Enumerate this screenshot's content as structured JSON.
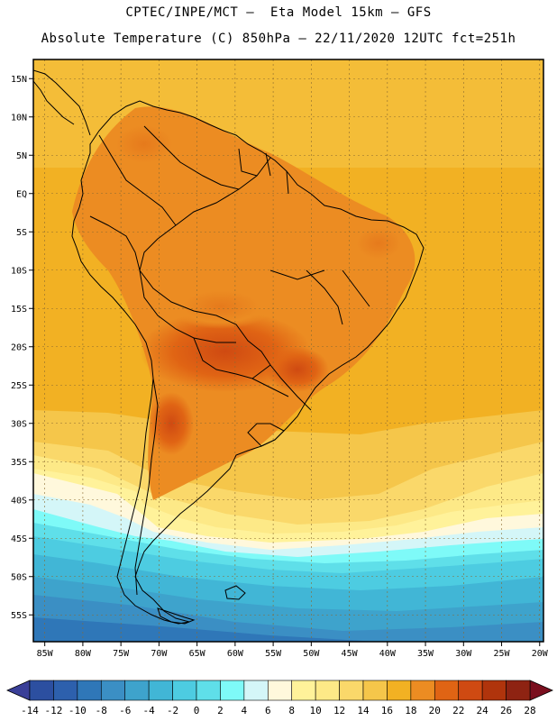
{
  "header": {
    "line1": "CPTEC/INPE/MCT –  Eta Model 15km – GFS",
    "line2": "Absolute Temperature (C) 850hPa – 22/11/2020 12UTC fct=251h"
  },
  "map": {
    "lon_range": [
      -86.5,
      -19.5
    ],
    "lat_range": [
      -58.5,
      17.5
    ],
    "lat_ticks": [
      {
        "value": 15,
        "label": "15N"
      },
      {
        "value": 10,
        "label": "10N"
      },
      {
        "value": 5,
        "label": "5N"
      },
      {
        "value": 0,
        "label": "EQ"
      },
      {
        "value": -5,
        "label": "5S"
      },
      {
        "value": -10,
        "label": "10S"
      },
      {
        "value": -15,
        "label": "15S"
      },
      {
        "value": -20,
        "label": "20S"
      },
      {
        "value": -25,
        "label": "25S"
      },
      {
        "value": -30,
        "label": "30S"
      },
      {
        "value": -35,
        "label": "35S"
      },
      {
        "value": -40,
        "label": "40S"
      },
      {
        "value": -45,
        "label": "45S"
      },
      {
        "value": -50,
        "label": "50S"
      },
      {
        "value": -55,
        "label": "55S"
      }
    ],
    "lon_ticks": [
      {
        "value": -85,
        "label": "85W"
      },
      {
        "value": -80,
        "label": "80W"
      },
      {
        "value": -75,
        "label": "75W"
      },
      {
        "value": -70,
        "label": "70W"
      },
      {
        "value": -65,
        "label": "65W"
      },
      {
        "value": -60,
        "label": "60W"
      },
      {
        "value": -55,
        "label": "55W"
      },
      {
        "value": -50,
        "label": "50W"
      },
      {
        "value": -45,
        "label": "45W"
      },
      {
        "value": -40,
        "label": "40W"
      },
      {
        "value": -35,
        "label": "35W"
      },
      {
        "value": -30,
        "label": "30W"
      },
      {
        "value": -25,
        "label": "25W"
      },
      {
        "value": -20,
        "label": "20W"
      }
    ]
  },
  "colorbar": {
    "low_color": "#3a3f98",
    "high_color": "#7a0f1e",
    "colors": [
      "#2c4fa0",
      "#2d60ad",
      "#2f77b8",
      "#3b8fc4",
      "#3ea3cc",
      "#41b6d6",
      "#4dcce1",
      "#5fdfe9",
      "#7efaf8",
      "#d4f6f8",
      "#fff8dc",
      "#fff29a",
      "#fde987",
      "#fad86a",
      "#f5c64a",
      "#f2b123",
      "#ec8c22",
      "#e06414",
      "#cf4a12",
      "#b0340c",
      "#8e2312"
    ],
    "labels": [
      "-14",
      "-12",
      "-10",
      "-8",
      "-6",
      "-4",
      "-2",
      "0",
      "2",
      "4",
      "6",
      "8",
      "10",
      "12",
      "14",
      "16",
      "18",
      "20",
      "22",
      "24",
      "26",
      "28"
    ]
  }
}
